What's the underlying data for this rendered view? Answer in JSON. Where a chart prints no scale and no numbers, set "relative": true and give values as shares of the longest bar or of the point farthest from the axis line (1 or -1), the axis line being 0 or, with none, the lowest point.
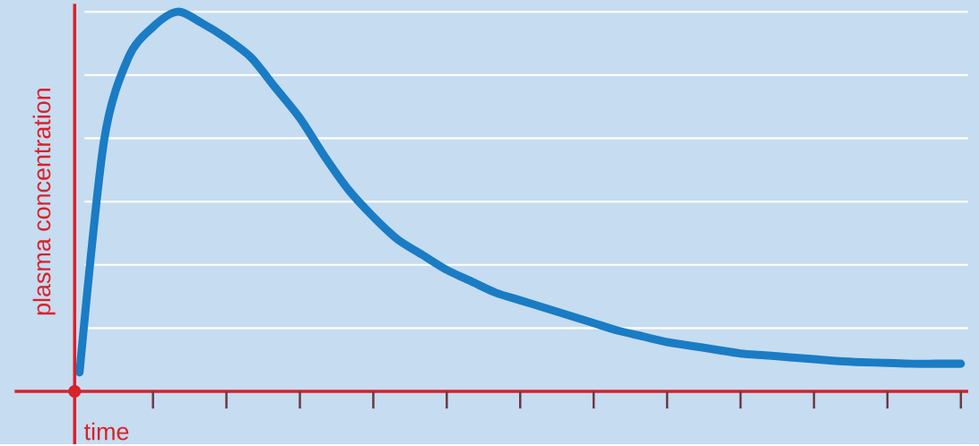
{
  "chart_data": {
    "type": "line",
    "relative": true,
    "grid": "y",
    "xlabel": "time",
    "ylabel": "plasma concentration",
    "categories": [
      null,
      null,
      null,
      null,
      null,
      null,
      null,
      null,
      null,
      null,
      null,
      null,
      null,
      null,
      null,
      null,
      null,
      null,
      null,
      null,
      null,
      null,
      null,
      null,
      null,
      null,
      null,
      null,
      null,
      null,
      null,
      null,
      null,
      null,
      null,
      null,
      null
    ],
    "series": [
      {
        "color": "#1a7cc4",
        "values": [
          0.05,
          0.66,
          0.88,
          0.96,
          1.0,
          0.97,
          0.93,
          0.88,
          0.8,
          0.72,
          0.62,
          0.53,
          0.46,
          0.4,
          0.36,
          0.32,
          0.29,
          0.26,
          0.24,
          0.22,
          0.2,
          0.18,
          0.16,
          0.145,
          0.13,
          0.12,
          0.11,
          0.1,
          0.095,
          0.09,
          0.085,
          0.08,
          0.077,
          0.075,
          0.073,
          0.073,
          0.073
        ]
      }
    ]
  }
}
